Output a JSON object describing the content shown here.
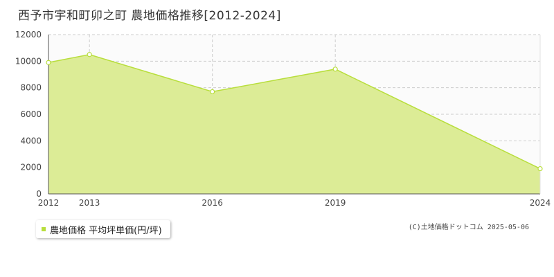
{
  "title": "西予市宇和町卯之町 農地価格推移[2012-2024]",
  "legend": {
    "label": "農地価格 平均坪単価(円/坪)"
  },
  "credit": "(C)土地価格ドットコム 2025-05-06",
  "colors": {
    "area_fill": "#dcec96",
    "line": "#b8de3c",
    "legend_swatch": "#b8de3c",
    "grid": "#cccccc",
    "plot_bg": "#fbfbfb"
  },
  "chart_data": {
    "type": "area",
    "title": "西予市宇和町卯之町 農地価格推移[2012-2024]",
    "x": [
      2012,
      2013,
      2016,
      2019,
      2024
    ],
    "series": [
      {
        "name": "農地価格 平均坪単価(円/坪)",
        "values": [
          9900,
          10500,
          7700,
          9400,
          1900
        ]
      }
    ],
    "xlim": [
      2012,
      2024
    ],
    "ylim": [
      0,
      12000
    ],
    "yticks": [
      0,
      2000,
      4000,
      6000,
      8000,
      10000,
      12000
    ],
    "xtick_labels": [
      "2012",
      "2013",
      "2016",
      "2019",
      "2024"
    ],
    "grid": true,
    "legend_position": "bottom-left"
  }
}
